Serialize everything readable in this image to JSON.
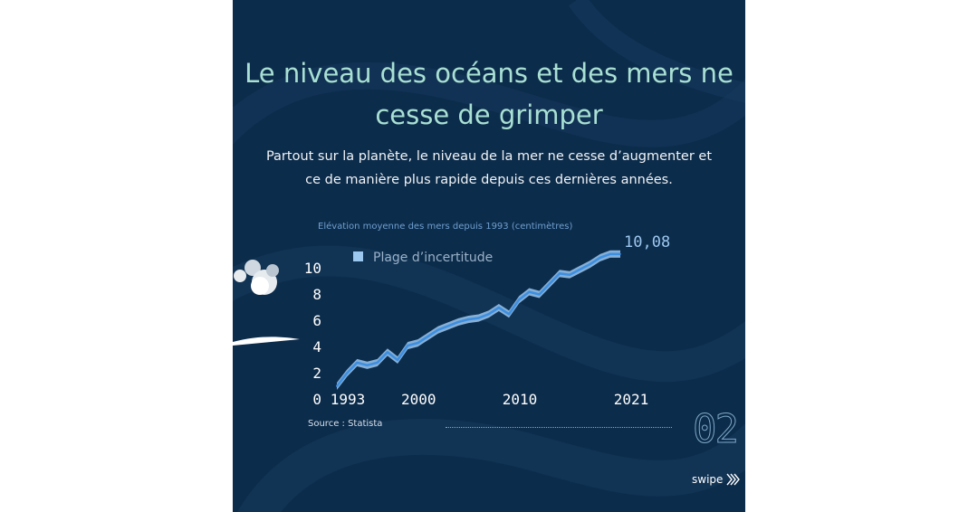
{
  "card": {
    "title": "Le niveau des océans et des mers ne cesse de grimper",
    "subtitle": "Partout sur la planète, le niveau de la mer ne cesse d’augmenter et ce de manière plus rapide depuis ces dernières années.",
    "source": "Source : Statista",
    "page_number": "02",
    "swipe_label": "swipe",
    "swipe_icon": "chevron-right-double-icon",
    "background_color": "#0c2c4b",
    "title_color": "#a9e0d3",
    "accent_color": "#3d8fe0"
  },
  "chart_data": {
    "type": "line",
    "title": "Elévation moyenne des mers depuis 1993 (centimètres)",
    "xlabel": "",
    "ylabel": "",
    "xlim": [
      1993,
      2021
    ],
    "ylim": [
      0,
      10
    ],
    "y_ticks": [
      "0",
      "2",
      "4",
      "6",
      "8",
      "10"
    ],
    "x_ticks": [
      {
        "value": 1993,
        "label": "1993"
      },
      {
        "value": 2000,
        "label": "2000"
      },
      {
        "value": 2010,
        "label": "2010"
      },
      {
        "value": 2021,
        "label": "2021"
      }
    ],
    "legend": [
      {
        "label": "Plage d’incertitude",
        "color": "#9cc7ef"
      }
    ],
    "end_label": "10,08",
    "grid": false,
    "x": [
      1993,
      1994,
      1995,
      1996,
      1997,
      1998,
      1999,
      2000,
      2001,
      2002,
      2003,
      2004,
      2005,
      2006,
      2007,
      2008,
      2009,
      2010,
      2011,
      2012,
      2013,
      2014,
      2015,
      2016,
      2017,
      2018,
      2019,
      2020,
      2021
    ],
    "series": [
      {
        "values": [
          0.0,
          1.0,
          1.8,
          1.6,
          1.8,
          2.6,
          2.0,
          3.1,
          3.3,
          3.8,
          4.3,
          4.6,
          4.9,
          5.1,
          5.2,
          5.5,
          6.0,
          5.5,
          6.6,
          7.2,
          7.0,
          7.8,
          8.6,
          8.5,
          8.9,
          9.3,
          9.8,
          10.08,
          10.08
        ]
      }
    ],
    "uncertainty_band": 0.28
  }
}
